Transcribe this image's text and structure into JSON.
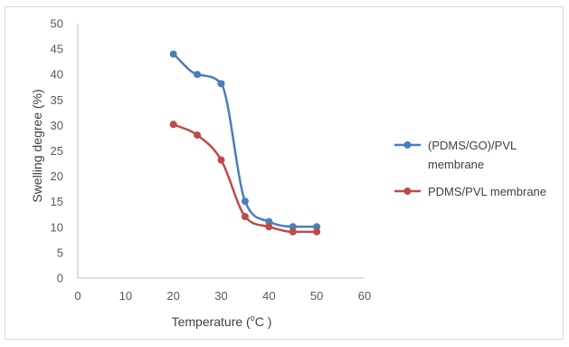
{
  "chart_data": {
    "type": "line",
    "smooth": true,
    "xlabel_main": "Temperature (",
    "xlabel_sup": "o",
    "xlabel_unit": "C )",
    "ylabel": "Swelling degree (%)",
    "xlim": [
      0,
      60
    ],
    "ylim": [
      0,
      50
    ],
    "x_ticks": [
      "0",
      "10",
      "20",
      "30",
      "40",
      "50",
      "60"
    ],
    "y_ticks": [
      "0",
      "5",
      "10",
      "15",
      "20",
      "25",
      "30",
      "35",
      "40",
      "45",
      "50"
    ],
    "grid": false,
    "legend_position": "right",
    "series": [
      {
        "name_line1": "(PDMS/GO)/PVL",
        "name_line2": "membrane",
        "color": "#4a7ebb",
        "x": [
          20,
          25,
          30,
          35,
          40,
          45,
          50
        ],
        "y": [
          44,
          40,
          38.2,
          15.1,
          11.1,
          10.1,
          10.1
        ]
      },
      {
        "name_line1": "PDMS/PVL membrane",
        "color": "#be4b48",
        "x": [
          20,
          25,
          30,
          35,
          40,
          45,
          50
        ],
        "y": [
          30.2,
          28.1,
          23.2,
          12.1,
          10.1,
          9.1,
          9.1
        ]
      }
    ]
  }
}
